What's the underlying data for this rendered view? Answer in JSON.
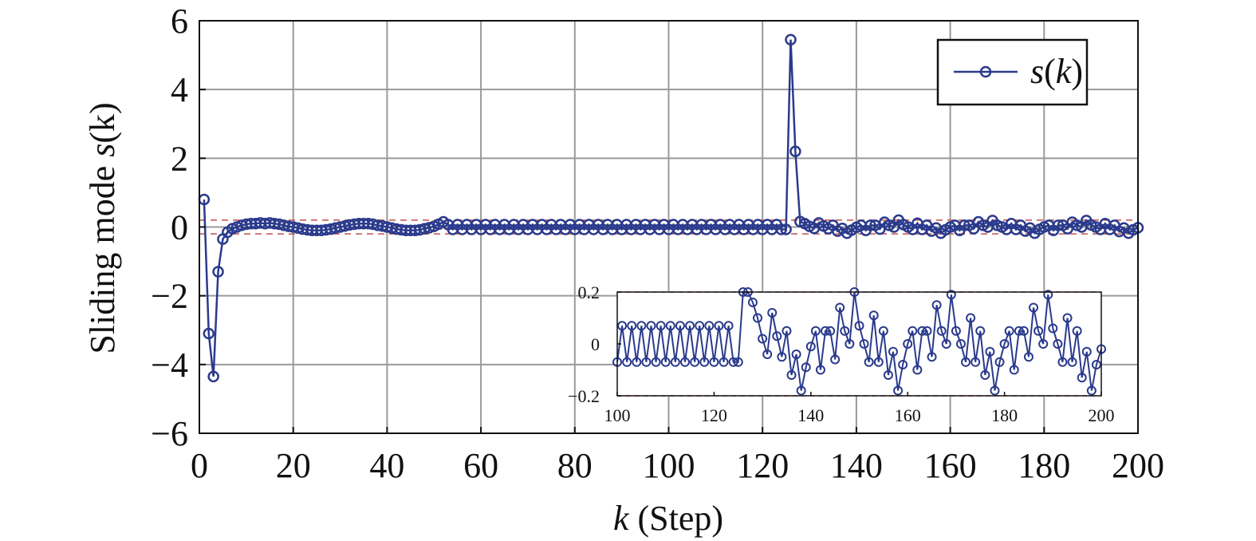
{
  "chart_data": [
    {
      "type": "line",
      "id": "main",
      "xlabel_var": "k",
      "xlabel_rest": " (Step)",
      "ylabel_text": "Sliding mode ",
      "ylabel_var": "s",
      "ylabel_arg": "(k)",
      "xlim": [
        0,
        200
      ],
      "ylim": [
        -6,
        6
      ],
      "xticks": [
        0,
        20,
        40,
        60,
        80,
        100,
        120,
        140,
        160,
        180,
        200
      ],
      "yticks": [
        -6,
        -4,
        -2,
        0,
        2,
        4,
        6
      ],
      "ytick_labels": [
        "−6",
        "−4",
        "−2",
        "0",
        "2",
        "4",
        "6"
      ],
      "grid": true,
      "legend_position": "top-right",
      "series": [
        {
          "name": "s(k)",
          "legend_var": "s",
          "legend_open": "(",
          "legend_arg": "k",
          "legend_close": ")",
          "color": "#2a3a8c",
          "marker": "circle",
          "x": [
            1,
            2,
            3,
            4,
            5,
            6,
            7,
            8,
            9,
            10,
            11,
            12,
            13,
            14,
            15,
            16,
            17,
            18,
            19,
            20,
            21,
            22,
            23,
            24,
            25,
            26,
            27,
            28,
            29,
            30,
            31,
            32,
            33,
            34,
            35,
            36,
            37,
            38,
            39,
            40,
            41,
            42,
            43,
            44,
            45,
            46,
            47,
            48,
            49,
            50,
            51,
            52,
            53,
            54,
            55,
            56,
            57,
            58,
            59,
            60,
            61,
            62,
            63,
            64,
            65,
            66,
            67,
            68,
            69,
            70,
            71,
            72,
            73,
            74,
            75,
            76,
            77,
            78,
            79,
            80,
            81,
            82,
            83,
            84,
            85,
            86,
            87,
            88,
            89,
            90,
            91,
            92,
            93,
            94,
            95,
            96,
            97,
            98,
            99,
            100,
            101,
            102,
            103,
            104,
            105,
            106,
            107,
            108,
            109,
            110,
            111,
            112,
            113,
            114,
            115,
            116,
            117,
            118,
            119,
            120,
            121,
            122,
            123,
            124,
            125,
            126,
            127,
            128,
            129,
            130,
            131,
            132,
            133,
            134,
            135,
            136,
            137,
            138,
            139,
            140,
            141,
            142,
            143,
            144,
            145,
            146,
            147,
            148,
            149,
            150,
            151,
            152,
            153,
            154,
            155,
            156,
            157,
            158,
            159,
            160,
            161,
            162,
            163,
            164,
            165,
            166,
            167,
            168,
            169,
            170,
            171,
            172,
            173,
            174,
            175,
            176,
            177,
            178,
            179,
            180,
            181,
            182,
            183,
            184,
            185,
            186,
            187,
            188,
            189,
            190,
            191,
            192,
            193,
            194,
            195,
            196,
            197,
            198,
            199,
            200
          ],
          "values": [
            0.8,
            -3.1,
            -4.35,
            -1.3,
            -0.35,
            -0.15,
            -0.05,
            0.0,
            0.05,
            0.08,
            0.1,
            0.1,
            0.12,
            0.1,
            0.12,
            0.1,
            0.08,
            0.05,
            0.02,
            0.0,
            -0.03,
            -0.06,
            -0.08,
            -0.1,
            -0.1,
            -0.1,
            -0.08,
            -0.06,
            -0.03,
            0.0,
            0.03,
            0.06,
            0.08,
            0.1,
            0.1,
            0.1,
            0.08,
            0.05,
            0.03,
            0.0,
            -0.03,
            -0.06,
            -0.08,
            -0.1,
            -0.1,
            -0.1,
            -0.08,
            -0.05,
            -0.02,
            0.02,
            0.08,
            0.15,
            0.07,
            -0.07,
            0.07,
            -0.07,
            0.07,
            -0.07,
            0.07,
            -0.07,
            0.07,
            -0.07,
            0.07,
            -0.07,
            0.07,
            -0.07,
            0.07,
            -0.07,
            0.07,
            -0.07,
            0.07,
            -0.07,
            0.07,
            -0.07,
            0.07,
            -0.07,
            0.07,
            -0.07,
            0.07,
            -0.07,
            0.07,
            -0.07,
            0.07,
            -0.07,
            0.07,
            -0.07,
            0.07,
            -0.07,
            0.07,
            -0.07,
            0.07,
            -0.07,
            0.07,
            -0.07,
            0.07,
            -0.07,
            0.07,
            -0.07,
            0.07,
            -0.07,
            0.07,
            -0.07,
            0.07,
            -0.07,
            0.07,
            -0.07,
            0.07,
            -0.07,
            0.07,
            -0.07,
            0.07,
            -0.07,
            0.07,
            -0.07,
            0.07,
            -0.07,
            0.07,
            -0.07,
            0.07,
            -0.07,
            0.07,
            -0.07,
            0.07,
            -0.07,
            -0.07,
            5.45,
            2.2,
            0.16,
            0.1,
            0.02,
            -0.04,
            0.12,
            0.03,
            -0.05,
            0.05,
            -0.12,
            -0.04,
            -0.18,
            -0.09,
            -0.01,
            0.05,
            -0.1,
            0.05,
            0.05,
            -0.06,
            0.14,
            0.05,
            0.0,
            0.2,
            0.07,
            -0.0,
            -0.07,
            0.11,
            -0.07,
            0.05,
            -0.12,
            -0.03,
            -0.18,
            -0.08,
            -0.0,
            0.05,
            -0.1,
            0.05,
            0.05,
            -0.05,
            0.15,
            0.05,
            -0.0,
            0.19,
            0.05,
            -0.0,
            -0.07,
            0.1,
            -0.07,
            0.05,
            -0.12,
            -0.03,
            -0.18,
            -0.07,
            -0.0,
            0.05,
            -0.1,
            0.05,
            0.05,
            -0.05,
            0.14,
            0.05,
            -0.0,
            0.19,
            0.06,
            -0.0,
            -0.07,
            0.1,
            -0.07,
            0.05,
            -0.13,
            -0.03,
            -0.18,
            -0.08,
            -0.02
          ]
        }
      ],
      "reference_lines": [
        0.2,
        -0.2
      ],
      "reference_line_color": "#c0504d"
    },
    {
      "type": "line",
      "id": "inset",
      "title": "",
      "xlim": [
        100,
        200
      ],
      "ylim": [
        -0.2,
        0.2
      ],
      "xticks": [
        100,
        120,
        140,
        160,
        180,
        200
      ],
      "yticks": [
        -0.2,
        0,
        0.2
      ],
      "ytick_labels": [
        "−0.2",
        "0",
        "0.2"
      ],
      "grid": false,
      "series": [
        {
          "color": "#2a3a8c",
          "marker": "circle",
          "x_range": [
            100,
            200
          ],
          "note": ""
        }
      ]
    }
  ]
}
